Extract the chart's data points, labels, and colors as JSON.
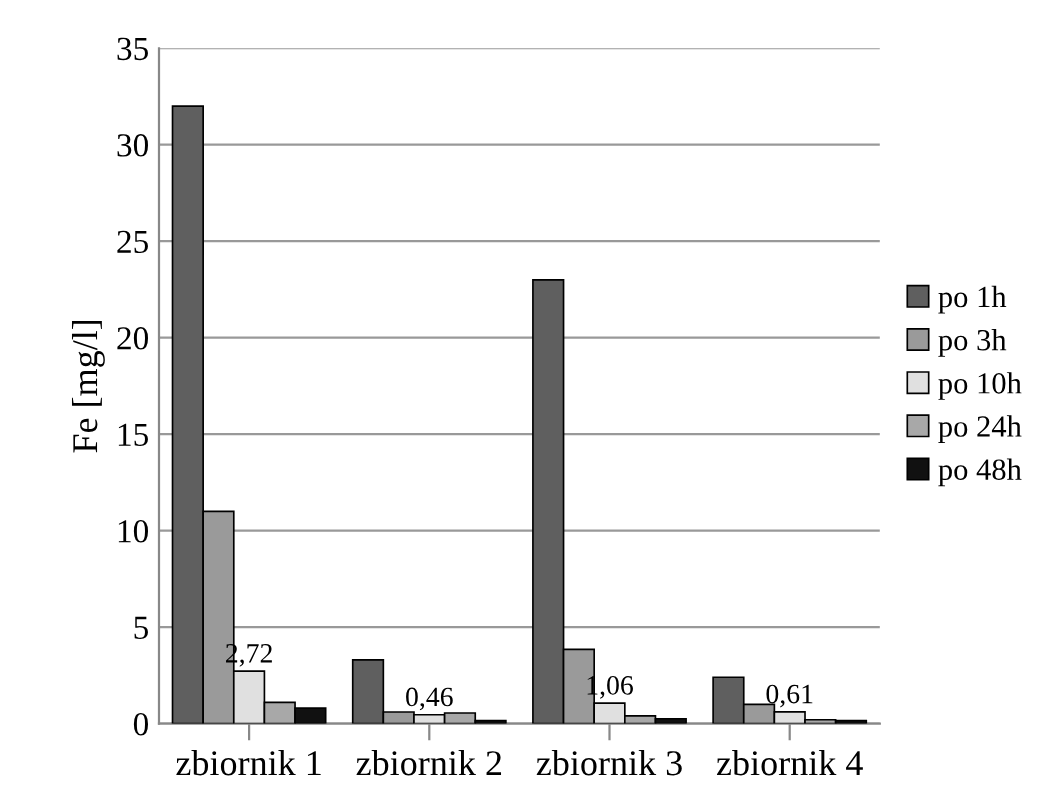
{
  "chart_data": {
    "type": "bar",
    "ylabel": "Fe [mg/l]",
    "categories": [
      "zbiornik 1",
      "zbiornik 2",
      "zbiornik 3",
      "zbiornik 4"
    ],
    "series": [
      {
        "name": "po 1h",
        "color": "#5f5f5f",
        "values": [
          32,
          3.3,
          23,
          2.4
        ]
      },
      {
        "name": "po 3h",
        "color": "#9a9a9a",
        "values": [
          11,
          0.6,
          3.85,
          1.0
        ]
      },
      {
        "name": "po 10h",
        "color": "#e0e0e0",
        "values": [
          2.72,
          0.46,
          1.06,
          0.61
        ],
        "value_labels": [
          "2,72",
          "0,46",
          "1,06",
          "0,61"
        ]
      },
      {
        "name": "po 24h",
        "color": "#a8a8a8",
        "values": [
          1.1,
          0.55,
          0.4,
          0.2
        ]
      },
      {
        "name": "po 48h",
        "color": "#111111",
        "values": [
          0.8,
          0.15,
          0.25,
          0.15
        ]
      }
    ],
    "ylim": [
      0,
      35
    ],
    "yticks": [
      0,
      5,
      10,
      15,
      20,
      25,
      30,
      35
    ],
    "grid": "y",
    "legend": "right"
  }
}
